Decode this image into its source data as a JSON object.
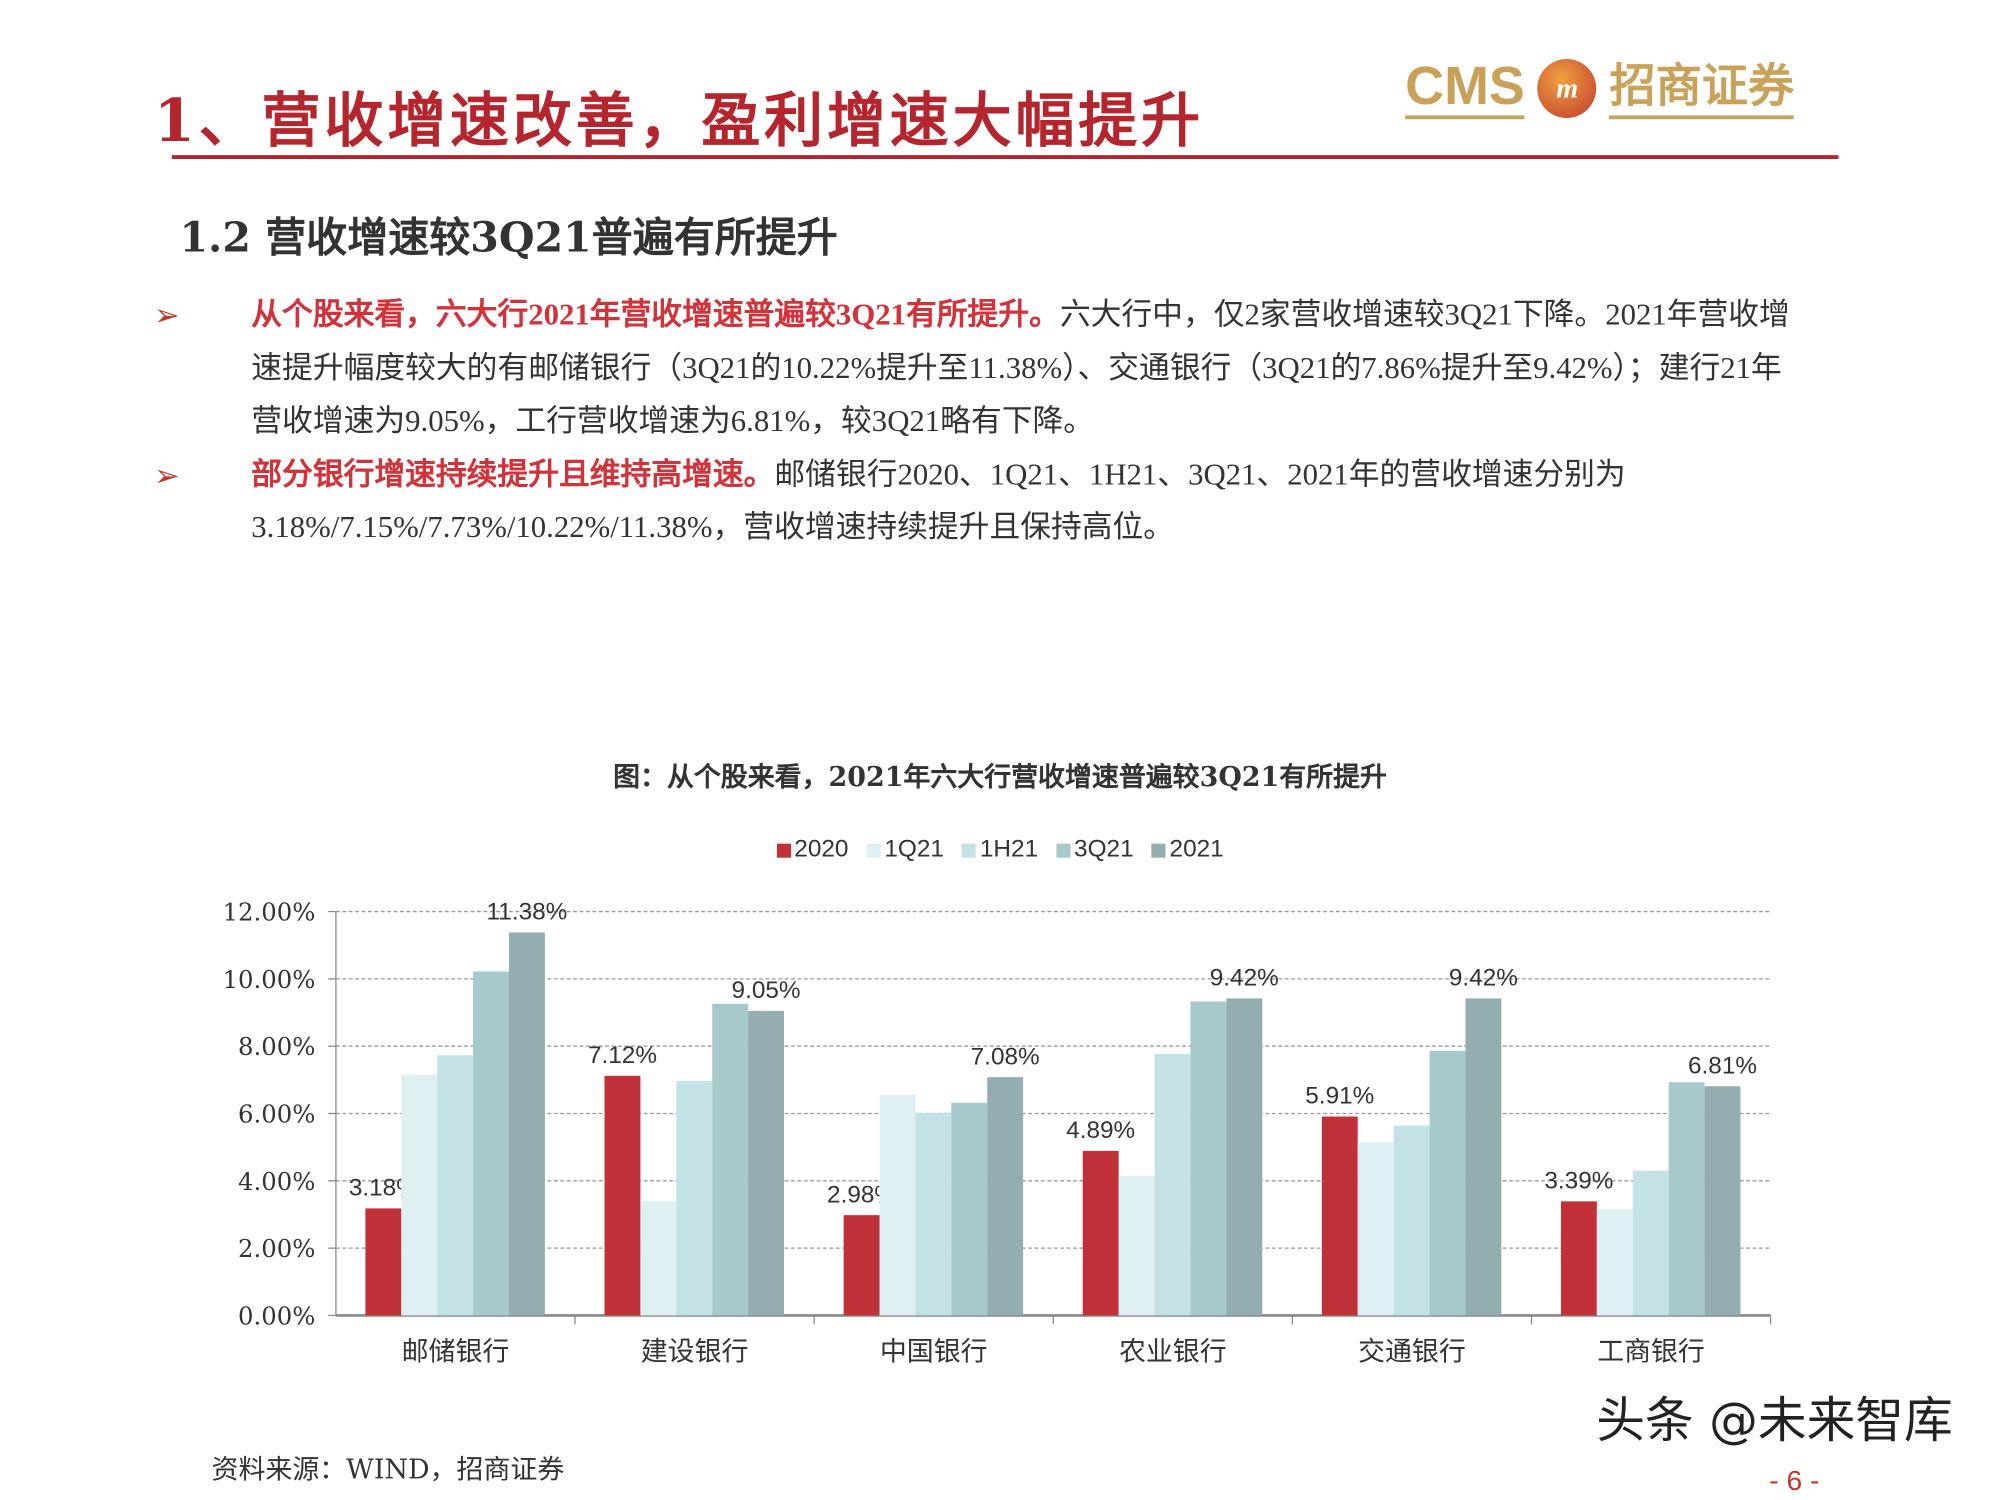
{
  "header": {
    "title": "1、营收增速改善，盈利增速大幅提升",
    "logo_text": "CMS",
    "logo_seal": "m",
    "logo_cn": "招商证券"
  },
  "section": {
    "subtitle": "1.2  营收增速较3Q21普遍有所提升"
  },
  "bullets": [
    {
      "marker": "➢",
      "highlight": "从个股来看，六大行2021年营收增速普遍较3Q21有所提升。",
      "text": "六大行中，仅2家营收增速较3Q21下降。2021年营收增速提升幅度较大的有邮储银行（3Q21的10.22%提升至11.38%）、交通银行（3Q21的7.86%提升至9.42%）；建行21年营收增速为9.05%，工行营收增速为6.81%，较3Q21略有下降。"
    },
    {
      "marker": "➢",
      "highlight": "部分银行增速持续提升且维持高增速。",
      "text": "邮储银行2020、1Q21、1H21、3Q21、2021年的营收增速分别为3.18%/7.15%/7.73%/10.22%/11.38%，营收增速持续提升且保持高位。"
    }
  ],
  "figure": {
    "title": "图：从个股来看，2021年六大行营收增速普遍较3Q21有所提升",
    "source": "资料来源：WIND，招商证券"
  },
  "chart_data": {
    "type": "bar",
    "categories": [
      "邮储银行",
      "建设银行",
      "中国银行",
      "农业银行",
      "交通银行",
      "工商银行"
    ],
    "series": [
      {
        "name": "2020",
        "color": "#c0313a",
        "values": [
          3.18,
          7.12,
          2.98,
          4.89,
          5.91,
          3.39
        ],
        "labels": [
          "3.18%",
          "7.12%",
          "2.98%",
          "4.89%",
          "5.91%",
          "3.39%"
        ]
      },
      {
        "name": "1Q21",
        "color": "#dff0f3",
        "values": [
          7.15,
          3.4,
          6.55,
          4.15,
          5.14,
          3.16
        ]
      },
      {
        "name": "1H21",
        "color": "#c4e2e5",
        "values": [
          7.73,
          6.97,
          6.02,
          7.77,
          5.64,
          4.3
        ]
      },
      {
        "name": "3Q21",
        "color": "#a7c9cb",
        "values": [
          10.22,
          9.26,
          6.32,
          9.33,
          7.86,
          6.93
        ]
      },
      {
        "name": "2021",
        "color": "#94adb0",
        "values": [
          11.38,
          9.05,
          7.08,
          9.42,
          9.42,
          6.81
        ],
        "labels": [
          "11.38%",
          "9.05%",
          "7.08%",
          "9.42%",
          "9.42%",
          "6.81%"
        ]
      }
    ],
    "yticks": [
      "0.00%",
      "2.00%",
      "4.00%",
      "6.00%",
      "8.00%",
      "10.00%",
      "12.00%"
    ],
    "ylim": [
      0,
      12
    ],
    "grid": true,
    "legend": "top"
  },
  "footer": {
    "watermark": "头条 @未来智库",
    "page": "- 6 -"
  }
}
